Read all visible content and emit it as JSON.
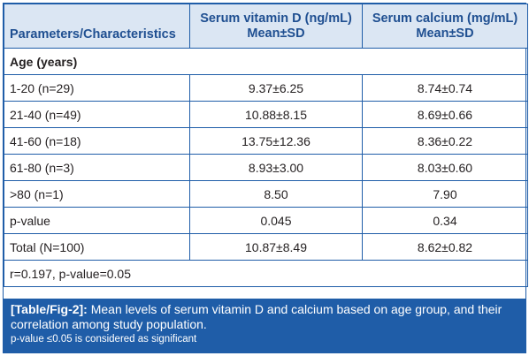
{
  "header": {
    "col1": "Parameters/Characteristics",
    "col2_line1": "Serum vitamin D (ng/mL)",
    "col2_line2": "Mean±SD",
    "col3_line1": "Serum calcium (mg/mL)",
    "col3_line2": "Mean±SD"
  },
  "section_label": "Age (years)",
  "rows": [
    {
      "label": "1-20 (n=29)",
      "vitd": "9.37±6.25",
      "ca": "8.74±0.74"
    },
    {
      "label": "21-40 (n=49)",
      "vitd": "10.88±8.15",
      "ca": "8.69±0.66"
    },
    {
      "label": "41-60 (n=18)",
      "vitd": "13.75±12.36",
      "ca": "8.36±0.22"
    },
    {
      "label": "61-80 (n=3)",
      "vitd": "8.93±3.00",
      "ca": "8.03±0.60"
    },
    {
      "label": ">80 (n=1)",
      "vitd": "8.50",
      "ca": "7.90"
    },
    {
      "label": "p-value",
      "vitd": "0.045",
      "ca": "0.34"
    },
    {
      "label": "Total (N=100)",
      "vitd": "10.87±8.49",
      "ca": "8.62±0.82"
    }
  ],
  "correlation": "r=0.197, p-value=0.05",
  "caption": {
    "tag": "[Table/Fig-2]:",
    "text": " Mean levels of serum vitamin D and calcium based on age group, and their correlation among study population.",
    "note": "p-value ≤0.05 is considered as significant"
  }
}
